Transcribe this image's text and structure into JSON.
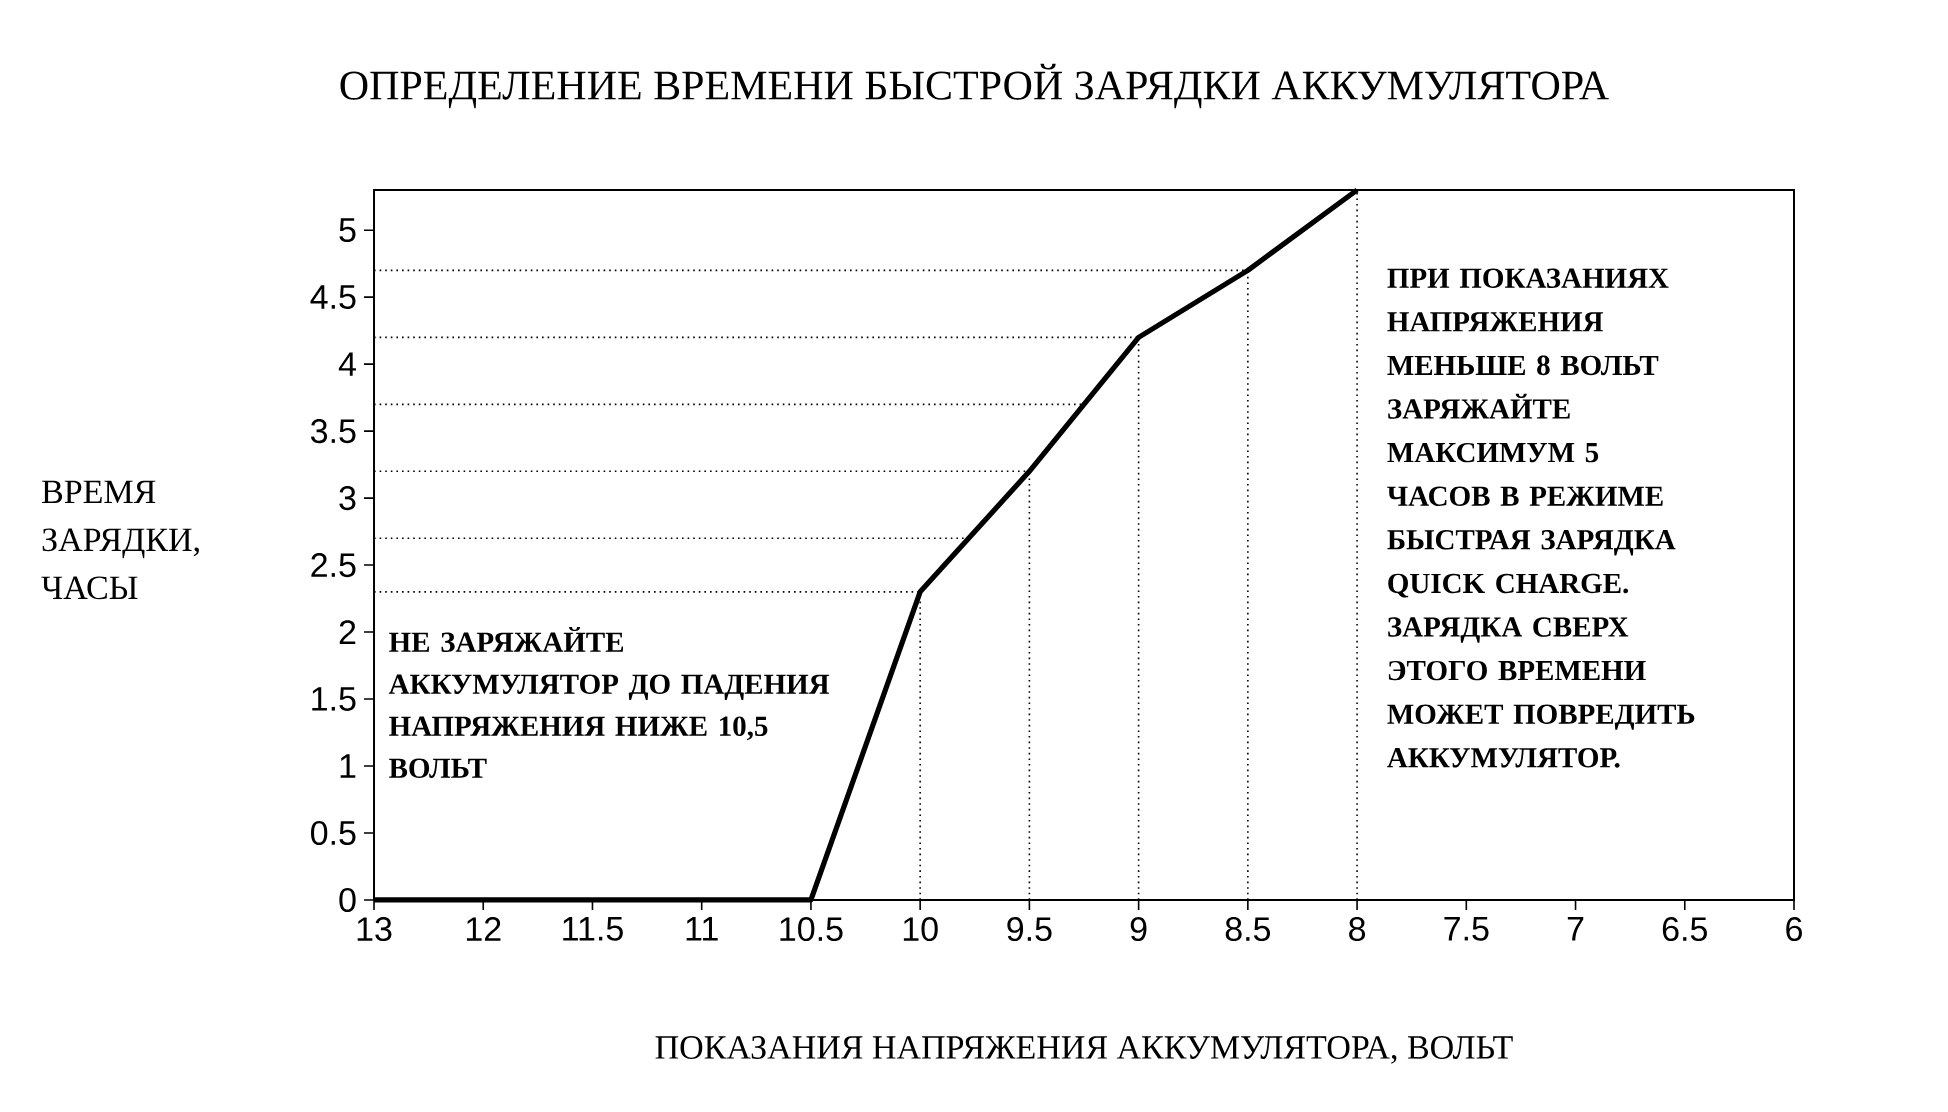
{
  "chart_data": {
    "type": "line",
    "title": "ОПРЕДЕЛЕНИЕ ВРЕМЕНИ БЫСТРОЙ ЗАРЯДКИ АККУМУЛЯТОРА",
    "xlabel": "ПОКАЗАНИЯ НАПРЯЖЕНИЯ АККУМУЛЯТОРА, ВОЛЬТ",
    "ylabel": "ВРЕМЯ ЗАРЯДКИ, ЧАСЫ",
    "categories": [
      "13",
      "12",
      "11.5",
      "11",
      "10.5",
      "10",
      "9.5",
      "9",
      "8.5",
      "8",
      "7.5",
      "7",
      "6.5",
      "6"
    ],
    "series": [
      {
        "color": "#000000",
        "values": [
          0,
          0,
          0,
          0,
          0,
          2.3,
          3.2,
          4.2,
          4.7,
          5.3,
          null,
          null,
          null,
          null
        ]
      }
    ],
    "ylim": [
      0,
      5.3
    ],
    "yticks": [
      0,
      0.5,
      1,
      1.5,
      2,
      2.5,
      3,
      3.5,
      4,
      4.5,
      5
    ],
    "marker": "none",
    "line_style": "solid",
    "ref_lines": [
      {
        "axis": "y",
        "value": 4.7,
        "color": "#000000",
        "line_style": "dotted"
      },
      {
        "axis": "y",
        "value": 4.2,
        "color": "#000000",
        "line_style": "dotted"
      },
      {
        "axis": "y",
        "value": 3.7,
        "color": "#000000",
        "line_style": "dotted"
      },
      {
        "axis": "y",
        "value": 3.2,
        "color": "#000000",
        "line_style": "dotted"
      },
      {
        "axis": "y",
        "value": 2.7,
        "color": "#000000",
        "line_style": "dotted"
      },
      {
        "axis": "y",
        "value": 2.3,
        "color": "#000000",
        "line_style": "dotted"
      },
      {
        "axis": "x",
        "value": "10",
        "color": "#000000",
        "line_style": "dotted"
      },
      {
        "axis": "x",
        "value": "9.5",
        "color": "#000000",
        "line_style": "dotted"
      },
      {
        "axis": "x",
        "value": "9",
        "color": "#000000",
        "line_style": "dotted"
      },
      {
        "axis": "x",
        "value": "8.5",
        "color": "#000000",
        "line_style": "dotted"
      },
      {
        "axis": "x",
        "value": "8",
        "color": "#000000",
        "line_style": "dotted"
      }
    ],
    "annotations": [
      "НЕ ЗАРЯЖАЙТЕ АККУМУЛЯТОР ДО ПАДЕНИЯ НАПРЯЖЕНИЯ НИЖЕ 10,5 ВОЛЬТ",
      "ПРИ ПОКАЗАНИЯХ НАПРЯЖЕНИЯ МЕНЬШЕ 8 ВОЛЬТ ЗАРЯЖАЙТЕ МАКСИМУМ 5 ЧАСОВ В РЕЖИМЕ БЫСТРАЯ ЗАРЯДКА QUICK CHARGE. ЗАРЯДКА СВЕРХ ЭТОГО ВРЕМЕНИ МОЖЕТ ПОВРЕДИТЬ АККУМУЛЯТОР."
    ]
  }
}
